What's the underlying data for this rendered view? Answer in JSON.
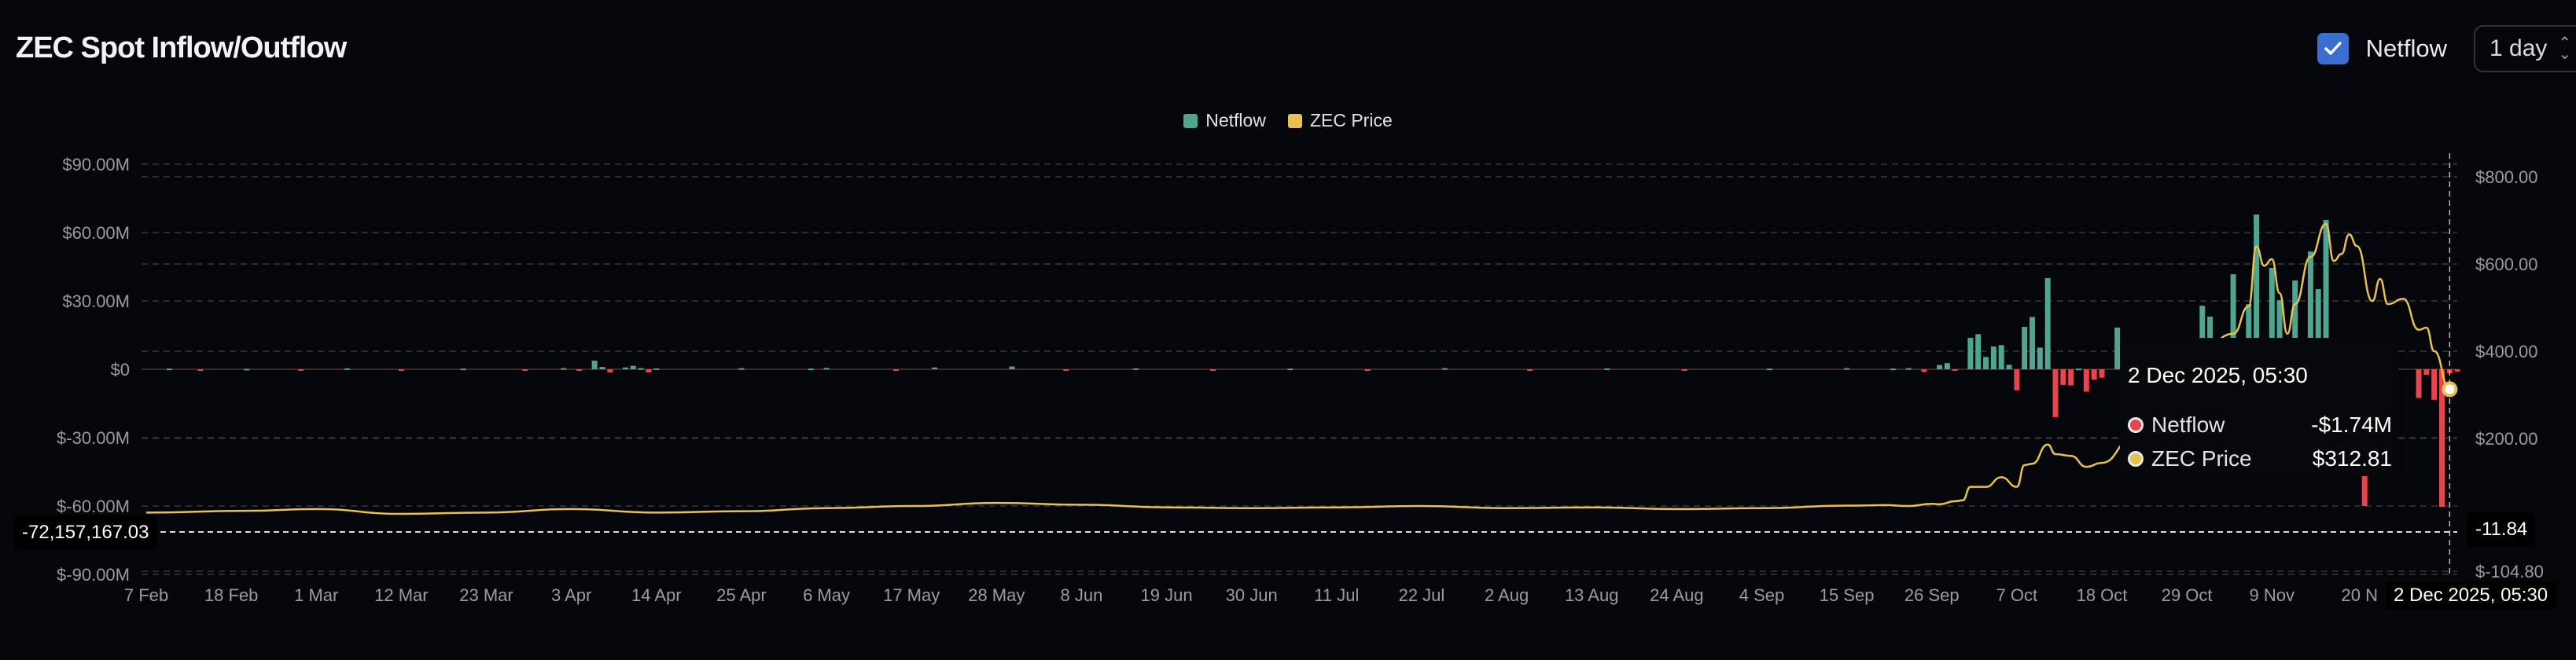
{
  "header": {
    "title": "ZEC Spot Inflow/Outflow",
    "checkbox_label": "Netflow",
    "checkbox_checked": true,
    "interval": "1 day",
    "checkbox_color": "#3a6fd0"
  },
  "legend": [
    {
      "label": "Netflow",
      "color": "#4fa58f"
    },
    {
      "label": "ZEC Price",
      "color": "#e8c150"
    }
  ],
  "tooltip": {
    "date": "2 Dec 2025, 05:30",
    "rows": [
      {
        "label": "Netflow",
        "value": "-$1.74M",
        "color": "#e5454c"
      },
      {
        "label": "ZEC Price",
        "value": "$312.81",
        "color": "#e8c150"
      }
    ]
  },
  "crosshair": {
    "left_value": "-72,157,167.03",
    "right_value": "-11.84",
    "date": "2 Dec 2025, 05:30"
  },
  "chart_data": {
    "type": "bar+line",
    "title": "ZEC Spot Inflow/Outflow",
    "x_start": "2025-02-07",
    "x_ticks": [
      "7 Feb",
      "18 Feb",
      "1 Mar",
      "12 Mar",
      "23 Mar",
      "3 Apr",
      "14 Apr",
      "25 Apr",
      "6 May",
      "17 May",
      "28 May",
      "8 Jun",
      "19 Jun",
      "30 Jun",
      "11 Jul",
      "22 Jul",
      "2 Aug",
      "13 Aug",
      "24 Aug",
      "4 Sep",
      "15 Sep",
      "26 Sep",
      "7 Oct",
      "18 Oct",
      "29 Oct",
      "9 Nov",
      "20 N"
    ],
    "left_axis": {
      "ticks": [
        "$90.00M",
        "$60.00M",
        "$30.00M",
        "$0",
        "$-30.00M",
        "$-60.00M",
        "$-90.00M"
      ],
      "values": [
        90,
        60,
        30,
        0,
        -30,
        -60,
        -90
      ],
      "unit": "USD millions"
    },
    "right_axis": {
      "ticks": [
        "$800.00",
        "$600.00",
        "$400.00",
        "$200.00",
        "$-104.80"
      ],
      "values": [
        800,
        600,
        400,
        200,
        -104.8
      ]
    },
    "grid": true,
    "legend_position": "top-center",
    "series": [
      {
        "name": "Netflow",
        "type": "bar",
        "axis": "left",
        "positive_color": "#4fa58f",
        "negative_color": "#e5454c",
        "points": [
          [
            "2025-02-10",
            0.3
          ],
          [
            "2025-02-14",
            -0.4
          ],
          [
            "2025-02-20",
            0.2
          ],
          [
            "2025-02-27",
            -0.3
          ],
          [
            "2025-03-05",
            0.4
          ],
          [
            "2025-03-12",
            -0.2
          ],
          [
            "2025-03-20",
            0.3
          ],
          [
            "2025-03-28",
            -0.5
          ],
          [
            "2025-04-02",
            0.5
          ],
          [
            "2025-04-04",
            -0.3
          ],
          [
            "2025-04-06",
            3.8
          ],
          [
            "2025-04-07",
            1.0
          ],
          [
            "2025-04-08",
            -1.4
          ],
          [
            "2025-04-10",
            0.8
          ],
          [
            "2025-04-11",
            1.5
          ],
          [
            "2025-04-12",
            0.5
          ],
          [
            "2025-04-13",
            -1.4
          ],
          [
            "2025-04-14",
            0.4
          ],
          [
            "2025-04-25",
            0.5
          ],
          [
            "2025-05-04",
            0.3
          ],
          [
            "2025-05-06",
            0.6
          ],
          [
            "2025-05-15",
            -0.3
          ],
          [
            "2025-05-20",
            0.8
          ],
          [
            "2025-05-30",
            1.2
          ],
          [
            "2025-06-06",
            -0.4
          ],
          [
            "2025-06-15",
            0.4
          ],
          [
            "2025-06-25",
            -0.5
          ],
          [
            "2025-07-05",
            0.3
          ],
          [
            "2025-07-15",
            -0.4
          ],
          [
            "2025-07-25",
            0.5
          ],
          [
            "2025-08-05",
            -0.3
          ],
          [
            "2025-08-15",
            0.4
          ],
          [
            "2025-08-25",
            -0.4
          ],
          [
            "2025-09-05",
            0.3
          ],
          [
            "2025-09-15",
            0.5
          ],
          [
            "2025-09-21",
            0.3
          ],
          [
            "2025-09-23",
            0.5
          ],
          [
            "2025-09-25",
            -1.2
          ],
          [
            "2025-09-27",
            1.9
          ],
          [
            "2025-09-28",
            2.7
          ],
          [
            "2025-09-29",
            -0.4
          ],
          [
            "2025-10-01",
            13.8
          ],
          [
            "2025-10-02",
            15.4
          ],
          [
            "2025-10-03",
            5.4
          ],
          [
            "2025-10-04",
            10.0
          ],
          [
            "2025-10-05",
            10.6
          ],
          [
            "2025-10-06",
            2.0
          ],
          [
            "2025-10-07",
            -9.2
          ],
          [
            "2025-10-08",
            18.6
          ],
          [
            "2025-10-09",
            23.0
          ],
          [
            "2025-10-10",
            9.5
          ],
          [
            "2025-10-11",
            40.0
          ],
          [
            "2025-10-12",
            -21.0
          ],
          [
            "2025-10-13",
            -6.9
          ],
          [
            "2025-10-14",
            -7.1
          ],
          [
            "2025-10-15",
            0.3
          ],
          [
            "2025-10-16",
            -9.8
          ],
          [
            "2025-10-17",
            -4.5
          ],
          [
            "2025-10-18",
            -3.7
          ],
          [
            "2025-10-20",
            18.3
          ],
          [
            "2025-10-31",
            27.9
          ],
          [
            "2025-11-01",
            23.1
          ],
          [
            "2025-11-04",
            41.7
          ],
          [
            "2025-11-06",
            28.6
          ],
          [
            "2025-11-07",
            67.9
          ],
          [
            "2025-11-09",
            44.5
          ],
          [
            "2025-11-10",
            30.3
          ],
          [
            "2025-11-12",
            39.0
          ],
          [
            "2025-11-14",
            51.7
          ],
          [
            "2025-11-15",
            35.2
          ],
          [
            "2025-11-16",
            65.5
          ],
          [
            "2025-11-21",
            -60.0
          ],
          [
            "2025-11-28",
            -12.6
          ],
          [
            "2025-11-29",
            -2.4
          ],
          [
            "2025-11-30",
            -13.4
          ],
          [
            "2025-12-01",
            -60.4
          ],
          [
            "2025-12-02",
            -1.74
          ],
          [
            "2025-12-03",
            -1.0
          ]
        ]
      },
      {
        "name": "ZEC Price",
        "type": "line",
        "axis": "right",
        "color": "#e8c150",
        "points": [
          [
            "2025-02-07",
            30
          ],
          [
            "2025-02-20",
            34
          ],
          [
            "2025-03-01",
            38
          ],
          [
            "2025-03-12",
            27
          ],
          [
            "2025-03-23",
            30
          ],
          [
            "2025-04-03",
            38
          ],
          [
            "2025-04-14",
            30
          ],
          [
            "2025-04-25",
            33
          ],
          [
            "2025-05-06",
            40
          ],
          [
            "2025-05-17",
            45
          ],
          [
            "2025-05-28",
            52
          ],
          [
            "2025-06-08",
            48
          ],
          [
            "2025-06-19",
            42
          ],
          [
            "2025-06-30",
            40
          ],
          [
            "2025-07-11",
            42
          ],
          [
            "2025-07-22",
            45
          ],
          [
            "2025-08-02",
            40
          ],
          [
            "2025-08-13",
            42
          ],
          [
            "2025-08-24",
            38
          ],
          [
            "2025-09-04",
            40
          ],
          [
            "2025-09-15",
            46
          ],
          [
            "2025-09-20",
            47
          ],
          [
            "2025-09-23",
            45
          ],
          [
            "2025-09-26",
            50
          ],
          [
            "2025-09-27",
            49
          ],
          [
            "2025-09-29",
            56
          ],
          [
            "2025-09-30",
            58
          ],
          [
            "2025-10-01",
            89
          ],
          [
            "2025-10-03",
            89
          ],
          [
            "2025-10-05",
            111
          ],
          [
            "2025-10-07",
            89
          ],
          [
            "2025-10-08",
            139
          ],
          [
            "2025-10-09",
            142
          ],
          [
            "2025-10-11",
            186
          ],
          [
            "2025-10-12",
            164
          ],
          [
            "2025-10-14",
            160
          ],
          [
            "2025-10-16",
            135
          ],
          [
            "2025-10-18",
            144
          ],
          [
            "2025-10-22",
            200
          ],
          [
            "2025-10-26",
            300
          ],
          [
            "2025-10-30",
            380
          ],
          [
            "2025-11-04",
            440
          ],
          [
            "2025-11-06",
            503
          ],
          [
            "2025-11-07",
            640
          ],
          [
            "2025-11-08",
            596
          ],
          [
            "2025-11-09",
            611
          ],
          [
            "2025-11-10",
            533
          ],
          [
            "2025-11-11",
            440
          ],
          [
            "2025-11-12",
            508
          ],
          [
            "2025-11-14",
            616
          ],
          [
            "2025-11-16",
            692
          ],
          [
            "2025-11-17",
            607
          ],
          [
            "2025-11-18",
            623
          ],
          [
            "2025-11-19",
            668
          ],
          [
            "2025-11-20",
            641
          ],
          [
            "2025-11-22",
            515
          ],
          [
            "2025-11-23",
            566
          ],
          [
            "2025-11-24",
            508
          ],
          [
            "2025-11-26",
            520
          ],
          [
            "2025-11-28",
            449
          ],
          [
            "2025-11-29",
            454
          ],
          [
            "2025-11-30",
            400
          ],
          [
            "2025-12-02",
            312.81
          ]
        ]
      }
    ]
  }
}
